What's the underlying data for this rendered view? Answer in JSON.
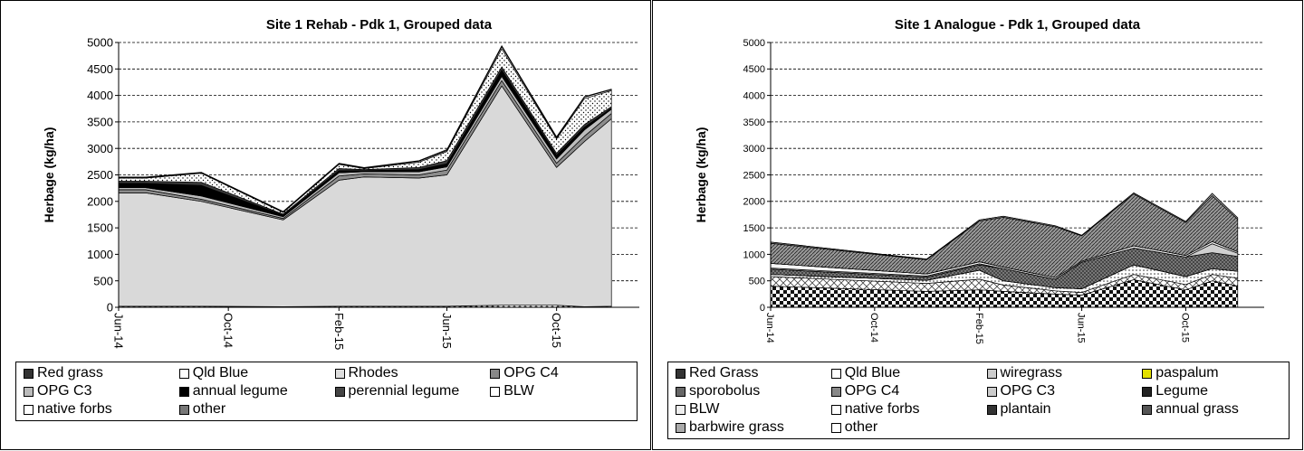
{
  "chart_data": [
    {
      "type": "area",
      "stacked": true,
      "title": "Site 1 Rehab - Pdk 1, Grouped data",
      "ylabel": "Herbage (kg/ha)",
      "xlabel": "",
      "ylim": [
        0,
        5000
      ],
      "yticks": [
        "0",
        "500",
        "1000",
        "1500",
        "2000",
        "2500",
        "3000",
        "3500",
        "4000",
        "4500",
        "5000"
      ],
      "xlim": [
        "2014-06-01",
        "2016-01-01"
      ],
      "xticks": [
        {
          "date": "2014-06-01",
          "label": "Jun-14"
        },
        {
          "date": "2014-10-01",
          "label": "Oct-14"
        },
        {
          "date": "2015-02-01",
          "label": "Feb-15"
        },
        {
          "date": "2015-06-01",
          "label": "Jun-15"
        },
        {
          "date": "2015-10-01",
          "label": "Oct-15"
        }
      ],
      "grid": "horizontal dashed",
      "legend_position": "bottom",
      "legend_columns": 4,
      "dates": [
        "2014-06-01",
        "2014-07-01",
        "2014-09-01",
        "2014-12-01",
        "2015-02-01",
        "2015-03-01",
        "2015-05-01",
        "2015-06-01",
        "2015-08-01",
        "2015-10-01",
        "2015-11-01",
        "2015-12-01"
      ],
      "series": [
        {
          "name": "Red grass",
          "values": [
            20,
            20,
            20,
            10,
            20,
            20,
            20,
            20,
            40,
            40,
            10,
            20
          ]
        },
        {
          "name": "Qld Blue",
          "values": [
            0,
            0,
            0,
            0,
            0,
            0,
            0,
            0,
            0,
            0,
            0,
            0
          ]
        },
        {
          "name": "Rhodes",
          "values": [
            2140,
            2140,
            1980,
            1640,
            2380,
            2440,
            2420,
            2480,
            4140,
            2600,
            3120,
            3540
          ]
        },
        {
          "name": "OPG C4",
          "values": [
            60,
            60,
            40,
            30,
            80,
            60,
            60,
            90,
            100,
            80,
            100,
            100
          ]
        },
        {
          "name": "OPG C3",
          "values": [
            40,
            40,
            60,
            30,
            60,
            40,
            60,
            60,
            80,
            80,
            120,
            80
          ]
        },
        {
          "name": "annual legume",
          "values": [
            80,
            80,
            200,
            30,
            40,
            20,
            40,
            60,
            120,
            70,
            50,
            20
          ]
        },
        {
          "name": "perennial legume",
          "values": [
            40,
            40,
            60,
            20,
            40,
            20,
            40,
            60,
            60,
            40,
            50,
            30
          ]
        },
        {
          "name": "BLW",
          "values": [
            60,
            60,
            170,
            30,
            80,
            20,
            100,
            170,
            340,
            270,
            490,
            300
          ]
        },
        {
          "name": "native forbs",
          "values": [
            10,
            10,
            10,
            10,
            10,
            10,
            20,
            20,
            40,
            20,
            30,
            20
          ]
        },
        {
          "name": "other",
          "values": [
            10,
            10,
            10,
            10,
            10,
            10,
            10,
            20,
            20,
            20,
            10,
            10
          ]
        }
      ]
    },
    {
      "type": "area",
      "stacked": true,
      "title": "Site 1 Analogue - Pdk 1, Grouped data",
      "ylabel": "Herbage (kg/ha)",
      "xlabel": "",
      "ylim": [
        0,
        5000
      ],
      "yticks": [
        "0",
        "500",
        "1000",
        "1500",
        "2000",
        "2500",
        "3000",
        "3500",
        "4000",
        "4500",
        "5000"
      ],
      "xlim": [
        "2014-06-01",
        "2016-01-01"
      ],
      "xticks": [
        {
          "date": "2014-06-01",
          "label": "Jun-14"
        },
        {
          "date": "2014-10-01",
          "label": "Oct-14"
        },
        {
          "date": "2015-02-01",
          "label": "Feb-15"
        },
        {
          "date": "2015-06-01",
          "label": "Jun-15"
        },
        {
          "date": "2015-10-01",
          "label": "Oct-15"
        }
      ],
      "grid": "horizontal dashed",
      "legend_position": "bottom",
      "legend_columns": 4,
      "dates": [
        "2014-06-01",
        "2014-12-01",
        "2015-02-01",
        "2015-03-01",
        "2015-05-01",
        "2015-06-01",
        "2015-08-01",
        "2015-10-01",
        "2015-11-01",
        "2015-12-01"
      ],
      "series": [
        {
          "name": "Red Grass",
          "values": [
            400,
            300,
            330,
            300,
            250,
            230,
            520,
            330,
            500,
            400
          ]
        },
        {
          "name": "Qld Blue",
          "values": [
            180,
            150,
            200,
            120,
            60,
            50,
            100,
            100,
            120,
            150
          ]
        },
        {
          "name": "wiregrass",
          "values": [
            40,
            60,
            170,
            80,
            60,
            70,
            180,
            150,
            110,
            130
          ]
        },
        {
          "name": "paspalum",
          "values": [
            0,
            0,
            0,
            0,
            0,
            0,
            0,
            0,
            0,
            0
          ]
        },
        {
          "name": "sporobolus",
          "values": [
            0,
            0,
            0,
            0,
            0,
            0,
            0,
            0,
            0,
            0
          ]
        },
        {
          "name": "OPG C4",
          "values": [
            100,
            60,
            100,
            230,
            160,
            500,
            320,
            370,
            300,
            280
          ]
        },
        {
          "name": "OPG C3",
          "values": [
            20,
            20,
            20,
            0,
            0,
            0,
            0,
            0,
            170,
            60
          ]
        },
        {
          "name": "Legume",
          "values": [
            0,
            0,
            0,
            0,
            0,
            0,
            0,
            0,
            0,
            0
          ]
        },
        {
          "name": "BLW",
          "values": [
            90,
            40,
            40,
            30,
            30,
            20,
            40,
            30,
            40,
            30
          ]
        },
        {
          "name": "native forbs",
          "values": [
            0,
            0,
            0,
            0,
            0,
            0,
            0,
            0,
            0,
            0
          ]
        },
        {
          "name": "plantain",
          "values": [
            0,
            0,
            0,
            0,
            0,
            0,
            0,
            0,
            0,
            0
          ]
        },
        {
          "name": "annual grass",
          "values": [
            380,
            270,
            770,
            940,
            960,
            480,
            980,
            620,
            870,
            610
          ]
        },
        {
          "name": "barbwire grass",
          "values": [
            20,
            10,
            20,
            20,
            20,
            10,
            20,
            20,
            40,
            30
          ]
        },
        {
          "name": "other",
          "values": [
            0,
            0,
            0,
            0,
            0,
            0,
            0,
            0,
            0,
            0
          ]
        }
      ]
    }
  ]
}
